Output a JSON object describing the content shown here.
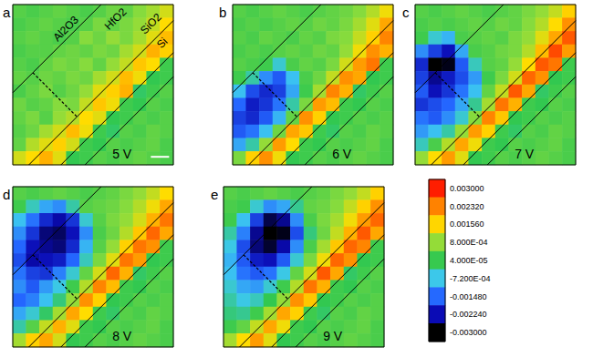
{
  "chart_data": {
    "type": "heatmap",
    "tick_labels": false,
    "layers": [
      "Al2O3",
      "HfO2",
      "SiO2",
      "Si"
    ],
    "colorbar": {
      "range": [
        -0.003,
        0.003
      ],
      "ticks": [
        {
          "value": 0.003,
          "label": "0.003000"
        },
        {
          "value": 0.00232,
          "label": "0.002320"
        },
        {
          "value": 0.00156,
          "label": "0.001560"
        },
        {
          "value": 0.0008,
          "label": "8.000E-04"
        },
        {
          "value": 4e-05,
          "label": "4.000E-05"
        },
        {
          "value": -0.00072,
          "label": "-7.200E-04"
        },
        {
          "value": -0.00148,
          "label": "-0.001480"
        },
        {
          "value": -0.00224,
          "label": "-0.002240"
        },
        {
          "value": -0.003,
          "label": "-0.003000"
        }
      ]
    },
    "panels": [
      {
        "label": "a",
        "annotation": "5 V",
        "cells": [
          [
            0.0003,
            0.0002,
            0.0003,
            0.0004,
            0.0003,
            0.0002,
            0.0003,
            0.0005,
            0.0004,
            0.0007,
            0.0009,
            0.0012
          ],
          [
            0.0002,
            0.0003,
            0.0004,
            0.0003,
            0.0002,
            0.0003,
            0.0006,
            0.0004,
            0.0006,
            0.0008,
            0.0011,
            0.0015
          ],
          [
            0.0003,
            0.0004,
            0.0003,
            0.0002,
            0.0003,
            0.0007,
            0.0005,
            0.0008,
            0.0006,
            0.0009,
            0.0013,
            0.0018
          ],
          [
            0.0002,
            0.0003,
            0.0003,
            0.0004,
            0.0005,
            0.0004,
            0.0006,
            0.0005,
            0.0009,
            0.0012,
            0.0019,
            0.0016
          ],
          [
            0.0003,
            0.0002,
            0.0004,
            0.0006,
            0.0005,
            0.0007,
            0.0004,
            0.0008,
            0.0011,
            0.0017,
            0.0015,
            0.0001
          ],
          [
            0.0004,
            0.0003,
            0.0005,
            0.0004,
            0.0006,
            0.0005,
            0.0009,
            0.0012,
            0.0018,
            0.0014,
            0.0,
            0.0001
          ],
          [
            0.0002,
            0.0004,
            0.0006,
            0.0003,
            0.0005,
            0.0008,
            0.0013,
            0.0016,
            0.0019,
            -0.0001,
            0.0001,
            0.0003
          ],
          [
            0.0005,
            0.0003,
            0.0004,
            0.0007,
            0.0006,
            0.0011,
            0.0017,
            0.0014,
            0.0001,
            0.0,
            0.0003,
            0.0002
          ],
          [
            0.0004,
            0.0006,
            0.0003,
            0.0008,
            0.001,
            0.0015,
            0.0013,
            0.0,
            0.0001,
            0.0003,
            0.0002,
            0.0003
          ],
          [
            0.0003,
            0.0005,
            0.0009,
            0.0012,
            0.0018,
            0.0014,
            0.0001,
            -0.0001,
            0.0003,
            0.0002,
            0.0004,
            0.0003
          ],
          [
            0.0004,
            0.001,
            0.0013,
            0.0016,
            0.0012,
            0.0001,
            0.0,
            0.0003,
            0.0002,
            0.0003,
            0.0004,
            0.0002
          ],
          [
            0.0012,
            0.0015,
            0.0019,
            0.0013,
            0.0,
            0.0001,
            0.0003,
            0.0002,
            0.0003,
            0.0004,
            0.0003,
            0.0002
          ]
        ]
      },
      {
        "label": "b",
        "annotation": "6 V",
        "cells": [
          [
            0.0003,
            0.0002,
            0.0003,
            0.0004,
            0.0003,
            0.0002,
            0.0003,
            0.0004,
            0.0005,
            0.0007,
            0.001,
            0.0014
          ],
          [
            0.0002,
            0.0003,
            0.0002,
            0.0003,
            0.0004,
            0.0003,
            0.0005,
            0.0004,
            0.0006,
            0.0009,
            0.0013,
            0.002
          ],
          [
            0.0003,
            0.0002,
            0.0004,
            0.0003,
            0.0002,
            0.0004,
            0.0003,
            0.0006,
            0.0007,
            0.0011,
            0.0016,
            0.0023
          ],
          [
            0.0002,
            0.0003,
            0.0002,
            0.0003,
            0.0004,
            0.0003,
            0.0005,
            0.0004,
            0.0008,
            0.0014,
            0.0022,
            0.0019
          ],
          [
            0.0003,
            0.0002,
            0.0001,
            -0.0006,
            0.0002,
            0.0004,
            0.0003,
            0.0006,
            0.0012,
            0.0021,
            0.0024,
            0.0001
          ],
          [
            0.0001,
            -0.0004,
            -0.0012,
            -0.0016,
            -0.0008,
            0.0002,
            0.0005,
            0.0011,
            0.0022,
            0.002,
            0.0,
            0.0001
          ],
          [
            -0.0008,
            -0.0017,
            -0.002,
            -0.0018,
            -0.001,
            0.0001,
            0.0009,
            0.0023,
            0.0019,
            -0.0001,
            0.0001,
            0.0003
          ],
          [
            -0.0015,
            -0.0021,
            -0.0019,
            -0.0014,
            -0.0004,
            0.0006,
            0.0021,
            0.0018,
            0.0001,
            0.0,
            0.0003,
            0.0002
          ],
          [
            -0.0018,
            -0.002,
            -0.0016,
            -0.0009,
            0.0004,
            0.0022,
            0.0016,
            0.0,
            0.0001,
            0.0003,
            0.0002,
            0.0003
          ],
          [
            -0.0016,
            -0.0014,
            -0.0008,
            0.0005,
            0.002,
            0.0017,
            0.0001,
            -0.0001,
            0.0003,
            0.0002,
            0.0004,
            0.0003
          ],
          [
            -0.001,
            -0.0004,
            0.0008,
            0.0021,
            0.0015,
            0.0001,
            0.0,
            0.0003,
            0.0002,
            0.0003,
            0.0004,
            0.0002
          ],
          [
            0.0006,
            0.0016,
            0.0022,
            0.0014,
            0.0,
            0.0001,
            0.0003,
            0.0002,
            0.0003,
            0.0004,
            0.0003,
            0.0002
          ]
        ]
      },
      {
        "label": "c",
        "annotation": "7 V",
        "cells": [
          [
            0.0003,
            0.0002,
            0.0003,
            0.0004,
            0.0003,
            0.0002,
            0.0003,
            0.0004,
            0.0006,
            0.0008,
            0.0011,
            0.0016
          ],
          [
            0.0002,
            0.0003,
            0.0002,
            0.0003,
            0.0004,
            0.0003,
            0.0005,
            0.0004,
            0.0007,
            0.001,
            0.0015,
            0.0022
          ],
          [
            0.0001,
            -0.0006,
            -0.0009,
            0.0002,
            0.0003,
            0.0004,
            0.0003,
            0.0006,
            0.0008,
            0.0013,
            0.002,
            0.0026
          ],
          [
            -0.0012,
            -0.0018,
            -0.0022,
            -0.001,
            0.0002,
            0.0003,
            0.0005,
            0.0006,
            0.001,
            0.0018,
            0.0027,
            0.0021
          ],
          [
            -0.002,
            -0.003,
            -0.0029,
            -0.0016,
            -0.0005,
            0.0003,
            0.0004,
            0.0008,
            0.0015,
            0.0026,
            0.0024,
            0.0001
          ],
          [
            -0.0018,
            -0.0024,
            -0.0021,
            -0.0017,
            -0.0011,
            0.0001,
            0.0006,
            0.0012,
            0.0025,
            0.0022,
            0.0,
            0.0001
          ],
          [
            -0.0016,
            -0.0022,
            -0.0019,
            -0.0014,
            -0.0008,
            0.0004,
            0.0011,
            0.0026,
            0.002,
            -0.0001,
            0.0001,
            0.0003
          ],
          [
            -0.0019,
            -0.0017,
            -0.0015,
            -0.001,
            -0.0003,
            0.0009,
            0.0024,
            0.0019,
            0.0001,
            0.0,
            0.0003,
            0.0002
          ],
          [
            -0.0014,
            -0.0016,
            -0.0012,
            -0.0006,
            0.0007,
            0.0023,
            0.0017,
            0.0,
            0.0001,
            0.0003,
            0.0002,
            0.0003
          ],
          [
            -0.0011,
            -0.0008,
            -0.0004,
            0.0008,
            0.0021,
            0.0016,
            0.0001,
            -0.0001,
            0.0003,
            0.0002,
            0.0004,
            0.0003
          ],
          [
            -0.0005,
            0.0002,
            0.001,
            0.002,
            0.0014,
            0.0001,
            0.0,
            0.0003,
            0.0002,
            0.0003,
            0.0004,
            0.0002
          ],
          [
            0.0008,
            0.0015,
            0.0021,
            0.0013,
            0.0,
            0.0001,
            0.0003,
            0.0002,
            0.0003,
            0.0004,
            0.0003,
            0.0002
          ]
        ]
      },
      {
        "label": "d",
        "annotation": "8 V",
        "cells": [
          [
            0.0003,
            0.0002,
            0.0003,
            0.0004,
            0.0003,
            0.0002,
            0.0003,
            0.0004,
            0.0006,
            0.0008,
            0.0011,
            0.0015
          ],
          [
            0.0001,
            -0.0005,
            -0.001,
            -0.0012,
            -0.0004,
            0.0003,
            0.0004,
            0.0005,
            0.0007,
            0.001,
            0.0014,
            0.002
          ],
          [
            -0.0008,
            -0.0014,
            -0.002,
            -0.0023,
            -0.0019,
            -0.0006,
            0.0003,
            0.0006,
            0.0008,
            0.0012,
            0.0019,
            0.0024
          ],
          [
            -0.0012,
            -0.0019,
            -0.0025,
            -0.0026,
            -0.0022,
            -0.0012,
            0.0002,
            0.0005,
            0.001,
            0.0017,
            0.0025,
            0.002
          ],
          [
            -0.0015,
            -0.0022,
            -0.0024,
            -0.0025,
            -0.002,
            -0.0009,
            0.0003,
            0.0008,
            0.0016,
            0.0024,
            0.0022,
            0.0001
          ],
          [
            -0.0017,
            -0.0023,
            -0.0022,
            -0.0021,
            -0.0015,
            -0.0005,
            0.0006,
            0.0013,
            0.0024,
            0.0021,
            0.0,
            0.0001
          ],
          [
            -0.0014,
            -0.0018,
            -0.0019,
            -0.0013,
            -0.0006,
            0.0004,
            0.0012,
            0.0025,
            0.0019,
            -0.0001,
            0.0001,
            0.0003
          ],
          [
            -0.0012,
            -0.0016,
            -0.0011,
            -0.0007,
            0.0001,
            0.001,
            0.0023,
            0.0018,
            0.0001,
            0.0,
            0.0003,
            0.0002
          ],
          [
            -0.0015,
            -0.0013,
            -0.0008,
            -0.0002,
            0.0008,
            0.0022,
            0.0016,
            0.0,
            0.0001,
            0.0003,
            0.0002,
            0.0003
          ],
          [
            -0.001,
            -0.0006,
            -0.0001,
            0.0009,
            0.002,
            0.0015,
            0.0001,
            -0.0001,
            0.0003,
            0.0002,
            0.0004,
            0.0003
          ],
          [
            -0.0004,
            0.0003,
            0.0011,
            0.0019,
            0.0013,
            0.0001,
            0.0,
            0.0003,
            0.0002,
            0.0003,
            0.0004,
            0.0002
          ],
          [
            0.0009,
            0.0016,
            0.002,
            0.0012,
            0.0,
            0.0001,
            0.0003,
            0.0002,
            0.0003,
            0.0004,
            0.0003,
            0.0002
          ]
        ]
      },
      {
        "label": "e",
        "annotation": "9 V",
        "cells": [
          [
            0.0003,
            0.0002,
            0.0003,
            0.0004,
            0.0003,
            0.0002,
            0.0003,
            0.0004,
            0.0006,
            0.0008,
            0.0011,
            0.0016
          ],
          [
            0.0002,
            0.0001,
            -0.0006,
            -0.0012,
            -0.001,
            -0.0003,
            0.0004,
            0.0005,
            0.0007,
            0.0011,
            0.0016,
            0.0022
          ],
          [
            0.0001,
            -0.0008,
            -0.0018,
            -0.0027,
            -0.0024,
            -0.0012,
            0.0002,
            0.0006,
            0.0009,
            0.0014,
            0.0021,
            0.0025
          ],
          [
            -0.0004,
            -0.0013,
            -0.0024,
            -0.003,
            -0.0029,
            -0.0017,
            -0.0002,
            0.0005,
            0.0011,
            0.0019,
            0.0026,
            0.002
          ],
          [
            -0.0007,
            -0.0017,
            -0.0025,
            -0.0028,
            -0.0023,
            -0.0012,
            0.0002,
            0.0009,
            0.0017,
            0.0025,
            0.0023,
            0.0001
          ],
          [
            -0.0009,
            -0.0016,
            -0.0021,
            -0.0022,
            -0.0016,
            -0.0006,
            0.0006,
            0.0014,
            0.0025,
            0.0022,
            0.0,
            0.0001
          ],
          [
            -0.0008,
            -0.0014,
            -0.0016,
            -0.0014,
            -0.0007,
            0.0004,
            0.0012,
            0.0026,
            0.002,
            -0.0001,
            0.0001,
            0.0003
          ],
          [
            -0.0006,
            -0.001,
            -0.0011,
            -0.0006,
            0.0001,
            0.001,
            0.0024,
            0.0019,
            0.0001,
            0.0,
            0.0003,
            0.0002
          ],
          [
            -0.0004,
            -0.0007,
            -0.0005,
            0.0,
            0.0008,
            0.0022,
            0.0017,
            0.0,
            0.0001,
            0.0003,
            0.0002,
            0.0003
          ],
          [
            -0.0002,
            -0.0003,
            0.0001,
            0.0009,
            0.002,
            0.0016,
            0.0001,
            -0.0001,
            0.0003,
            0.0002,
            0.0004,
            0.0003
          ],
          [
            0.0001,
            0.0004,
            0.0011,
            0.002,
            0.0014,
            0.0001,
            0.0,
            0.0003,
            0.0002,
            0.0003,
            0.0004,
            0.0002
          ],
          [
            0.0009,
            0.0015,
            0.0021,
            0.0013,
            0.0,
            0.0001,
            0.0003,
            0.0002,
            0.0003,
            0.0004,
            0.0003,
            0.0002
          ]
        ]
      }
    ]
  }
}
